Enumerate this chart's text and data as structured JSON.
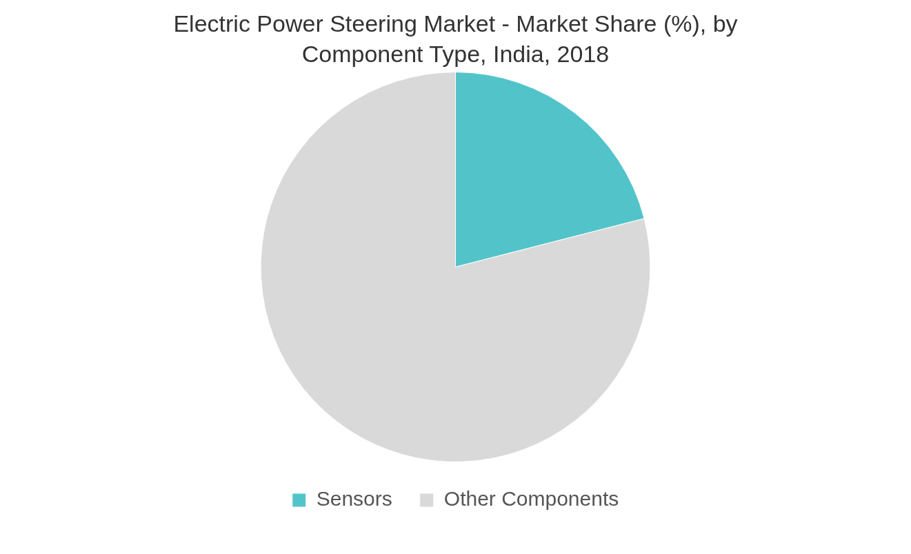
{
  "chart_data": {
    "type": "pie",
    "title": "Electric Power Steering Market - Market Share (%), by Component Type, India, 2018",
    "categories": [
      "Sensors",
      "Other Components"
    ],
    "values": [
      21,
      79
    ],
    "colors": [
      "#52c4c9",
      "#d9d9d9"
    ],
    "legend": "bottom"
  }
}
